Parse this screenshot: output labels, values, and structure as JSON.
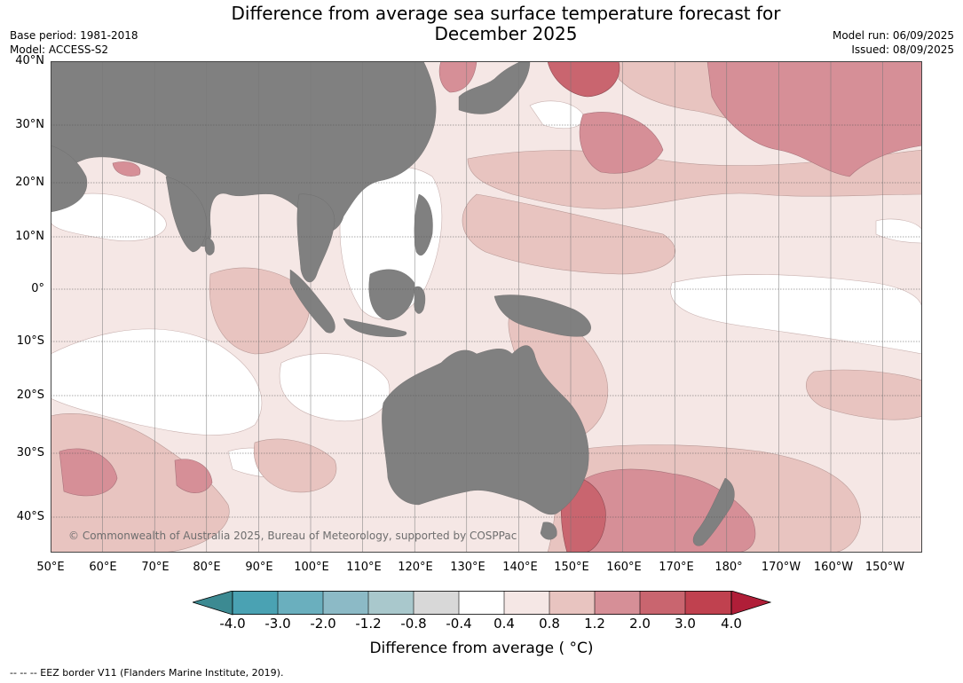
{
  "title": {
    "line1": "Difference from average sea surface temperature forecast for",
    "line2": "December 2025"
  },
  "meta_left": {
    "base_period": "Base period: 1981-2018",
    "model": "Model: ACCESS-S2"
  },
  "meta_right": {
    "model_run": "Model run: 06/09/2025",
    "issued": "Issued: 08/09/2025"
  },
  "lat_labels": [
    "40°N",
    "30°N",
    "20°N",
    "10°N",
    "0°",
    "10°S",
    "20°S",
    "30°S",
    "40°S"
  ],
  "lon_labels": [
    "50°E",
    "60°E",
    "70°E",
    "80°E",
    "90°E",
    "100°E",
    "110°E",
    "120°E",
    "130°E",
    "140°E",
    "150°E",
    "160°E",
    "170°E",
    "180°",
    "170°W",
    "160°W",
    "150°W"
  ],
  "map_credit": "© Commonwealth of Australia 2025, Bureau of Meteorology, supported by COSPPac",
  "colorbar": {
    "label": "Difference from average ( °C)",
    "ticks": [
      "-4.0",
      "-3.0",
      "-2.0",
      "-1.2",
      "-0.8",
      "-0.4",
      "0.4",
      "0.8",
      "1.2",
      "2.0",
      "3.0",
      "4.0"
    ],
    "colors": [
      "#3c8a92",
      "#4aa2b3",
      "#6aafbe",
      "#8cbac6",
      "#a9c8cc",
      "#d8d8d8",
      "#ffffff",
      "#f5e7e5",
      "#e8c4c0",
      "#d68f97",
      "#c9656f",
      "#c0414f",
      "#b01e38"
    ]
  },
  "land_color": "#808080",
  "footer": "--  --  -- EEZ border V11 (Flanders Marine Institute, 2019)."
}
